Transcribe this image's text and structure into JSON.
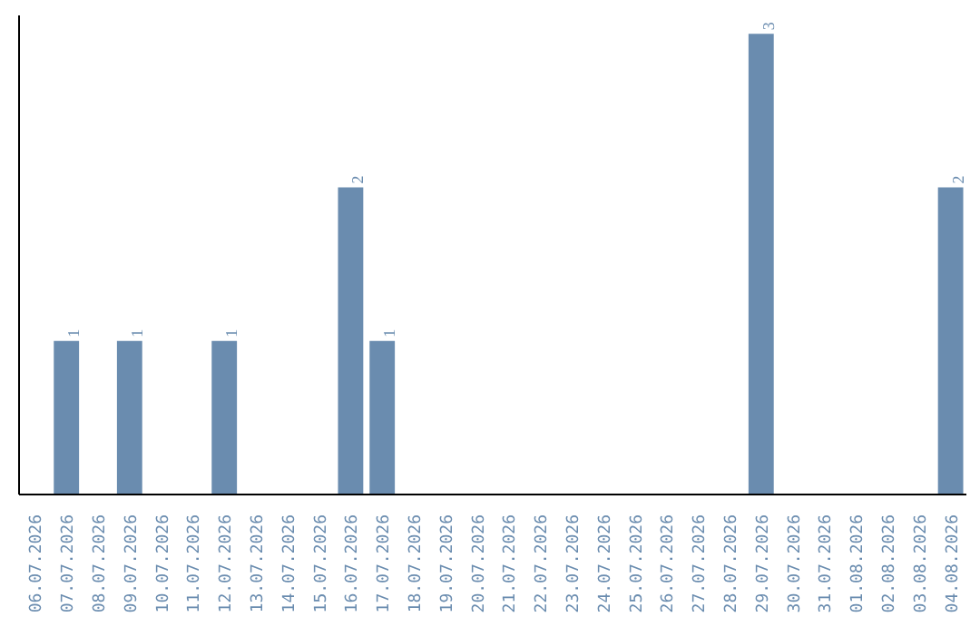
{
  "chart_data": {
    "type": "bar",
    "categories": [
      "06.07.2026",
      "07.07.2026",
      "08.07.2026",
      "09.07.2026",
      "10.07.2026",
      "11.07.2026",
      "12.07.2026",
      "13.07.2026",
      "14.07.2026",
      "15.07.2026",
      "16.07.2026",
      "17.07.2026",
      "18.07.2026",
      "19.07.2026",
      "20.07.2026",
      "21.07.2026",
      "22.07.2026",
      "23.07.2026",
      "24.07.2026",
      "25.07.2026",
      "26.07.2026",
      "27.07.2026",
      "28.07.2026",
      "29.07.2026",
      "30.07.2026",
      "31.07.2026",
      "01.08.2026",
      "02.08.2026",
      "03.08.2026",
      "04.08.2026"
    ],
    "values": [
      0,
      1,
      0,
      1,
      0,
      0,
      1,
      0,
      0,
      0,
      2,
      1,
      0,
      0,
      0,
      0,
      0,
      0,
      0,
      0,
      0,
      0,
      0,
      3,
      0,
      0,
      0,
      0,
      0,
      2
    ],
    "value_labels": [
      null,
      "1",
      null,
      "1",
      null,
      null,
      "1",
      null,
      null,
      null,
      "2",
      "1",
      null,
      null,
      null,
      null,
      null,
      null,
      null,
      null,
      null,
      null,
      null,
      "3",
      null,
      null,
      null,
      null,
      null,
      "2"
    ],
    "color": "#6a8caf",
    "tick_labels": "x"
  }
}
